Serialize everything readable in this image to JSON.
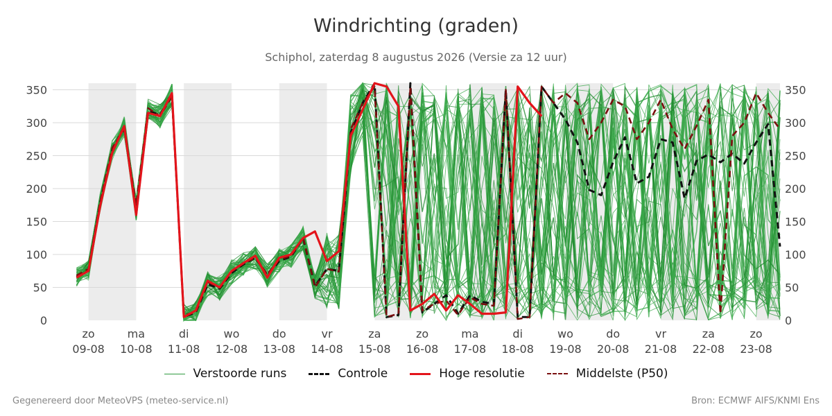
{
  "chart_data": {
    "type": "line",
    "title": "Windrichting (graden)",
    "subtitle": "Schiphol, zaterdag  8 augustus 2026 (Versie za 12 uur)",
    "ylim": [
      0,
      360
    ],
    "yticks": [
      0,
      50,
      100,
      150,
      200,
      250,
      300,
      350
    ],
    "xlim": [
      -0.75,
      14.5
    ],
    "x_ticks": [
      {
        "day": "zo",
        "date": "09-08"
      },
      {
        "day": "ma",
        "date": "10-08"
      },
      {
        "day": "di",
        "date": "11-08"
      },
      {
        "day": "wo",
        "date": "12-08"
      },
      {
        "day": "do",
        "date": "13-08"
      },
      {
        "day": "vr",
        "date": "14-08"
      },
      {
        "day": "za",
        "date": "15-08"
      },
      {
        "day": "zo",
        "date": "16-08"
      },
      {
        "day": "ma",
        "date": "17-08"
      },
      {
        "day": "di",
        "date": "18-08"
      },
      {
        "day": "wo",
        "date": "19-08"
      },
      {
        "day": "do",
        "date": "20-08"
      },
      {
        "day": "vr",
        "date": "21-08"
      },
      {
        "day": "za",
        "date": "22-08"
      },
      {
        "day": "zo",
        "date": "23-08"
      }
    ],
    "shaded_ranges": [
      [
        0,
        1
      ],
      [
        2,
        3
      ],
      [
        4,
        5
      ],
      [
        6,
        7
      ],
      [
        8,
        9
      ],
      [
        10,
        11
      ],
      [
        12,
        13
      ],
      [
        14,
        14.5
      ]
    ],
    "grid": true,
    "legend_position": "bottom",
    "colors": {
      "ensemble": "#2e9a3e",
      "controle": "#111111",
      "hoge_resolutie": "#e3141b",
      "p50": "#7a0f0f",
      "shade": "#ececec",
      "grid": "#d9d9d9"
    },
    "series": [
      {
        "name": "Controle",
        "style": "dashed",
        "x": [
          -0.25,
          -0.0,
          0.25,
          0.5,
          0.75,
          1.0,
          1.25,
          1.5,
          1.75,
          2.0,
          2.25,
          2.5,
          2.75,
          3.0,
          3.25,
          3.5,
          3.75,
          4.0,
          4.25,
          4.5,
          4.75,
          5.0,
          5.25,
          5.5,
          5.75,
          6.0,
          6.25,
          6.5,
          6.75,
          7.0,
          7.25,
          7.5,
          7.75,
          8.0,
          8.25,
          8.5,
          8.75,
          9.0,
          9.25,
          9.5,
          9.75,
          10.0,
          10.25,
          10.5,
          10.75,
          11.0,
          11.25,
          11.5,
          11.75,
          12.0,
          12.25,
          12.5,
          12.75,
          13.0,
          13.25,
          13.5,
          13.75,
          14.0,
          14.25,
          14.5
        ],
        "values": [
          66,
          75,
          180,
          258,
          295,
          165,
          318,
          312,
          343,
          5,
          12,
          55,
          48,
          72,
          85,
          95,
          68,
          90,
          97,
          125,
          52,
          78,
          75,
          285,
          330,
          360,
          5,
          8,
          360,
          12,
          25,
          38,
          10,
          38,
          28,
          25,
          350,
          5,
          5,
          355,
          330,
          305,
          270,
          198,
          190,
          240,
          278,
          208,
          218,
          275,
          270,
          185,
          242,
          252,
          240,
          253,
          238,
          270,
          298,
          112
        ]
      },
      {
        "name": "Hoge resolutie",
        "style": "solid",
        "x": [
          -0.25,
          -0.0,
          0.25,
          0.5,
          0.75,
          1.0,
          1.25,
          1.5,
          1.75,
          2.0,
          2.25,
          2.5,
          2.75,
          3.0,
          3.25,
          3.5,
          3.75,
          4.0,
          4.25,
          4.5,
          4.75,
          5.0,
          5.25,
          5.5,
          5.75,
          6.0,
          6.25,
          6.5,
          6.75,
          7.0,
          7.25,
          7.5,
          7.75,
          8.0,
          8.25,
          8.5,
          8.75,
          9.0,
          9.25,
          9.5
        ],
        "values": [
          65,
          75,
          175,
          255,
          295,
          160,
          315,
          310,
          345,
          5,
          15,
          60,
          50,
          75,
          87,
          98,
          65,
          95,
          100,
          125,
          135,
          90,
          105,
          280,
          320,
          360,
          355,
          325,
          15,
          25,
          40,
          15,
          38,
          25,
          10,
          10,
          12,
          355,
          330,
          310
        ]
      },
      {
        "name": "Middelste (P50)",
        "style": "dashed",
        "x": [
          -0.25,
          -0.0,
          0.25,
          0.5,
          0.75,
          1.0,
          1.25,
          1.5,
          1.75,
          2.0,
          2.25,
          2.5,
          2.75,
          3.0,
          3.25,
          3.5,
          3.75,
          4.0,
          4.25,
          4.5,
          4.75,
          5.0,
          5.25,
          5.5,
          5.75,
          6.0,
          6.25,
          6.5,
          6.75,
          7.0,
          7.25,
          7.5,
          7.75,
          8.0,
          8.25,
          8.5,
          8.75,
          9.0,
          9.25,
          9.5,
          9.75,
          10.0,
          10.25,
          10.5,
          10.75,
          11.0,
          11.25,
          11.5,
          11.75,
          12.0,
          12.25,
          12.5,
          12.75,
          13.0,
          13.25,
          13.5,
          13.75,
          14.0,
          14.25,
          14.5
        ],
        "values": [
          68,
          78,
          182,
          262,
          290,
          175,
          322,
          310,
          340,
          8,
          12,
          58,
          50,
          74,
          86,
          95,
          70,
          92,
          98,
          126,
          50,
          78,
          74,
          290,
          330,
          355,
          5,
          10,
          355,
          15,
          25,
          30,
          8,
          35,
          25,
          22,
          350,
          2,
          5,
          355,
          330,
          345,
          330,
          275,
          300,
          335,
          325,
          275,
          300,
          335,
          290,
          260,
          295,
          335,
          10,
          280,
          300,
          345,
          315,
          290
        ]
      }
    ],
    "legend": [
      {
        "label": "Verstoorde runs",
        "style": "thin-solid",
        "color_key": "ensemble"
      },
      {
        "label": "Controle",
        "style": "dashed",
        "color_key": "controle"
      },
      {
        "label": "Hoge resolutie",
        "style": "solid",
        "color_key": "hoge_resolutie"
      },
      {
        "label": "Middelste (P50)",
        "style": "dashed",
        "color_key": "p50"
      }
    ]
  },
  "footer": {
    "left": "Gegenereerd door MeteoVPS (meteo-service.nl)",
    "right": "Bron: ECMWF AIFS/KNMI Ens"
  }
}
